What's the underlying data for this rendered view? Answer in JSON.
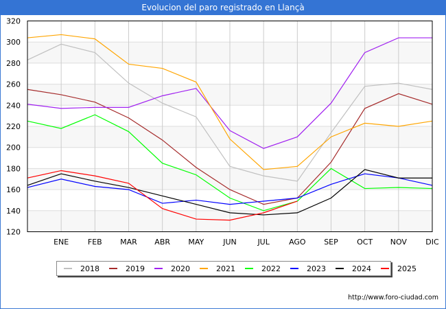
{
  "title": "Evolucion del paro registrado en Llançà",
  "footer": "http://www.foro-ciudad.com",
  "chart_data": {
    "type": "line",
    "title": "Evolucion del paro registrado en Llançà",
    "xlabel": "",
    "ylabel": "",
    "x": [
      "",
      "ENE",
      "FEB",
      "MAR",
      "ABR",
      "MAY",
      "JUN",
      "JUL",
      "AGO",
      "SEP",
      "OCT",
      "NOV",
      "DIC"
    ],
    "ylim": [
      120,
      320
    ],
    "yticks": [
      120,
      140,
      160,
      180,
      200,
      220,
      240,
      260,
      280,
      300,
      320
    ],
    "grid": true,
    "legend_position": "bottom",
    "series": [
      {
        "name": "2018",
        "color": "#c0c0c0",
        "values": [
          283,
          298,
          290,
          261,
          242,
          229,
          182,
          173,
          168,
          214,
          258,
          261,
          255
        ]
      },
      {
        "name": "2019",
        "color": "#a52a2a",
        "values": [
          255,
          250,
          243,
          228,
          207,
          181,
          160,
          146,
          152,
          186,
          237,
          251,
          241
        ]
      },
      {
        "name": "2020",
        "color": "#a020f0",
        "values": [
          241,
          237,
          238,
          238,
          249,
          256,
          216,
          199,
          210,
          242,
          290,
          304,
          304
        ]
      },
      {
        "name": "2021",
        "color": "#ffa500",
        "values": [
          304,
          307,
          303,
          279,
          275,
          262,
          208,
          179,
          182,
          210,
          223,
          220,
          225
        ]
      },
      {
        "name": "2022",
        "color": "#00ff00",
        "values": [
          225,
          218,
          231,
          215,
          185,
          174,
          152,
          140,
          149,
          180,
          161,
          162,
          161
        ]
      },
      {
        "name": "2023",
        "color": "#0000ff",
        "values": [
          162,
          170,
          163,
          160,
          147,
          150,
          146,
          149,
          152,
          165,
          175,
          171,
          164
        ]
      },
      {
        "name": "2024",
        "color": "#000000",
        "values": [
          164,
          175,
          168,
          162,
          154,
          146,
          138,
          136,
          138,
          152,
          179,
          171,
          171
        ]
      },
      {
        "name": "2025",
        "color": "#ff0000",
        "values": [
          171,
          178,
          173,
          166,
          142,
          132,
          131,
          138,
          149
        ]
      }
    ]
  }
}
